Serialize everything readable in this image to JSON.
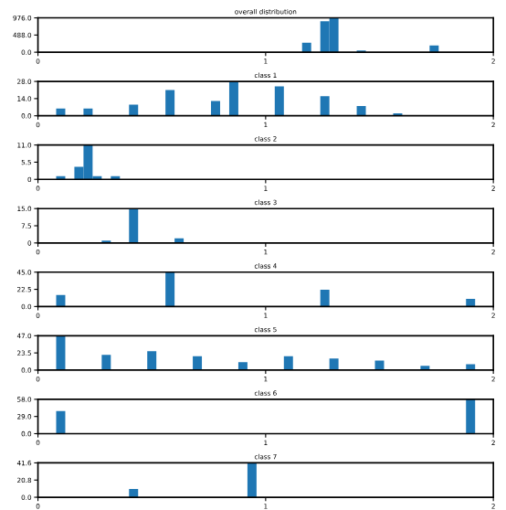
{
  "chart_data": [
    {
      "type": "histogram",
      "title": "overall distribution",
      "color": "#1f77b4",
      "xlim": [
        0,
        2
      ],
      "xticks": [
        0,
        1,
        2
      ],
      "ylim": [
        0,
        976.0
      ],
      "yticks": [
        {
          "value": 0,
          "label": "0.0"
        },
        {
          "value": 488,
          "label": "488.0"
        },
        {
          "value": 976,
          "label": "976.0"
        }
      ],
      "bins": [
        0,
        0.04,
        0.08,
        0.12,
        0.16,
        0.2,
        0.24,
        0.28,
        0.32,
        0.36,
        0.4,
        0.44,
        0.48,
        0.52,
        0.56,
        0.6,
        0.64,
        0.68,
        0.72,
        0.76,
        0.8,
        0.84,
        0.88,
        0.92,
        0.96,
        1.0,
        1.04,
        1.08,
        1.12,
        1.16,
        1.2,
        1.24,
        1.28,
        1.32,
        1.36,
        1.4,
        1.44,
        1.48,
        1.52,
        1.56,
        1.6,
        1.64,
        1.68,
        1.72,
        1.76,
        1.8,
        1.84,
        1.88,
        1.92,
        1.96,
        2.0
      ],
      "values": [
        0,
        0,
        0,
        0,
        0,
        0,
        0,
        0,
        0,
        0,
        0,
        0,
        0,
        0,
        0,
        0,
        0,
        0,
        0,
        0,
        0,
        0,
        0,
        0,
        0,
        0,
        0,
        0,
        0,
        270,
        0,
        880,
        970,
        0,
        0,
        50,
        0,
        0,
        0,
        0,
        0,
        0,
        0,
        190,
        0,
        0,
        0,
        0,
        0,
        0
      ]
    },
    {
      "type": "histogram",
      "title": "class 1",
      "color": "#1f77b4",
      "xlim": [
        0,
        2
      ],
      "xticks": [
        0,
        1,
        2
      ],
      "ylim": [
        0,
        28.0
      ],
      "yticks": [
        {
          "value": 0,
          "label": "0.0"
        },
        {
          "value": 14,
          "label": "14.0"
        },
        {
          "value": 28,
          "label": "28.0"
        }
      ],
      "bins": [
        0,
        0.04,
        0.08,
        0.12,
        0.16,
        0.2,
        0.24,
        0.28,
        0.32,
        0.36,
        0.4,
        0.44,
        0.48,
        0.52,
        0.56,
        0.6,
        0.64,
        0.68,
        0.72,
        0.76,
        0.8,
        0.84,
        0.88,
        0.92,
        0.96,
        1.0,
        1.04,
        1.08,
        1.12,
        1.16,
        1.2,
        1.24,
        1.28,
        1.32,
        1.36,
        1.4,
        1.44,
        1.48,
        1.52,
        1.56,
        1.6,
        1.64,
        1.68,
        1.72,
        1.76,
        1.8,
        1.84,
        1.88,
        1.92,
        1.96,
        2.0
      ],
      "values": [
        0,
        0,
        6,
        0,
        0,
        6,
        0,
        0,
        0,
        0,
        9,
        0,
        0,
        0,
        21,
        0,
        0,
        0,
        0,
        12,
        0,
        28,
        0,
        0,
        0,
        0,
        24,
        0,
        0,
        0,
        0,
        16,
        0,
        0,
        0,
        8,
        0,
        0,
        0,
        2,
        0,
        0,
        0,
        0,
        0,
        0,
        0,
        0,
        0,
        0
      ]
    },
    {
      "type": "histogram",
      "title": "class 2",
      "color": "#1f77b4",
      "xlim": [
        0,
        2
      ],
      "xticks": [
        0,
        1,
        2
      ],
      "ylim": [
        0,
        11.0
      ],
      "yticks": [
        0,
        5.5,
        {
          "value": 11,
          "label": "11.0"
        }
      ],
      "bins": [
        0,
        0.04,
        0.08,
        0.12,
        0.16,
        0.2,
        0.24,
        0.28,
        0.32,
        0.36,
        0.4,
        0.44,
        0.48,
        0.52,
        0.56,
        0.6,
        0.64,
        0.68,
        0.72,
        0.76,
        0.8,
        0.84,
        0.88,
        0.92,
        0.96,
        1.0,
        1.04,
        1.08,
        1.12,
        1.16,
        1.2,
        1.24,
        1.28,
        1.32,
        1.36,
        1.4,
        1.44,
        1.48,
        1.52,
        1.56,
        1.6,
        1.64,
        1.68,
        1.72,
        1.76,
        1.8,
        1.84,
        1.88,
        1.92,
        1.96,
        2.0
      ],
      "values": [
        0,
        0,
        1,
        0,
        4,
        11,
        1,
        0,
        1,
        0,
        0,
        0,
        0,
        0,
        0,
        0,
        0,
        0,
        0,
        0,
        0,
        0,
        0,
        0,
        0,
        0,
        0,
        0,
        0,
        0,
        0,
        0,
        0,
        0,
        0,
        0,
        0,
        0,
        0,
        0,
        0,
        0,
        0,
        0,
        0,
        0,
        0,
        0,
        0,
        0
      ]
    },
    {
      "type": "histogram",
      "title": "class 3",
      "color": "#1f77b4",
      "xlim": [
        0,
        2
      ],
      "xticks": [
        0,
        1,
        2
      ],
      "ylim": [
        0,
        15.0
      ],
      "yticks": [
        0,
        7.5,
        {
          "value": 15,
          "label": "15.0"
        }
      ],
      "bins": [
        0,
        0.04,
        0.08,
        0.12,
        0.16,
        0.2,
        0.24,
        0.28,
        0.32,
        0.36,
        0.4,
        0.44,
        0.48,
        0.52,
        0.56,
        0.6,
        0.64,
        0.68,
        0.72,
        0.76,
        0.8,
        0.84,
        0.88,
        0.92,
        0.96,
        1.0,
        1.04,
        1.08,
        1.12,
        1.16,
        1.2,
        1.24,
        1.28,
        1.32,
        1.36,
        1.4,
        1.44,
        1.48,
        1.52,
        1.56,
        1.6,
        1.64,
        1.68,
        1.72,
        1.76,
        1.8,
        1.84,
        1.88,
        1.92,
        1.96,
        2.0
      ],
      "values": [
        0,
        0,
        0,
        0,
        0,
        0,
        0,
        1,
        0,
        0,
        15,
        0,
        0,
        0,
        0,
        2,
        0,
        0,
        0,
        0,
        0,
        0,
        0,
        0,
        0,
        0,
        0,
        0,
        0,
        0,
        0,
        0,
        0,
        0,
        0,
        0,
        0,
        0,
        0,
        0,
        0,
        0,
        0,
        0,
        0,
        0,
        0,
        0,
        0,
        0
      ]
    },
    {
      "type": "histogram",
      "title": "class 4",
      "color": "#1f77b4",
      "xlim": [
        0,
        2
      ],
      "xticks": [
        0,
        1,
        2
      ],
      "ylim": [
        0,
        45.0
      ],
      "yticks": [
        {
          "value": 0,
          "label": "0.0"
        },
        22.5,
        {
          "value": 45,
          "label": "45.0"
        }
      ],
      "bins": [
        0,
        0.04,
        0.08,
        0.12,
        0.16,
        0.2,
        0.24,
        0.28,
        0.32,
        0.36,
        0.4,
        0.44,
        0.48,
        0.52,
        0.56,
        0.6,
        0.64,
        0.68,
        0.72,
        0.76,
        0.8,
        0.84,
        0.88,
        0.92,
        0.96,
        1.0,
        1.04,
        1.08,
        1.12,
        1.16,
        1.2,
        1.24,
        1.28,
        1.32,
        1.36,
        1.4,
        1.44,
        1.48,
        1.52,
        1.56,
        1.6,
        1.64,
        1.68,
        1.72,
        1.76,
        1.8,
        1.84,
        1.88,
        1.92,
        1.96,
        2.0
      ],
      "values": [
        0,
        0,
        15,
        0,
        0,
        0,
        0,
        0,
        0,
        0,
        0,
        0,
        0,
        0,
        45,
        0,
        0,
        0,
        0,
        0,
        0,
        0,
        0,
        0,
        0,
        0,
        0,
        0,
        0,
        0,
        0,
        22,
        0,
        0,
        0,
        0,
        0,
        0,
        0,
        0,
        0,
        0,
        0,
        0,
        0,
        0,
        0,
        10,
        0,
        0
      ]
    },
    {
      "type": "histogram",
      "title": "class 5",
      "color": "#1f77b4",
      "xlim": [
        0,
        2
      ],
      "xticks": [
        0,
        1,
        2
      ],
      "ylim": [
        0,
        47.0
      ],
      "yticks": [
        {
          "value": 0,
          "label": "0.0"
        },
        23.5,
        {
          "value": 47,
          "label": "47.0"
        }
      ],
      "bins": [
        0,
        0.04,
        0.08,
        0.12,
        0.16,
        0.2,
        0.24,
        0.28,
        0.32,
        0.36,
        0.4,
        0.44,
        0.48,
        0.52,
        0.56,
        0.6,
        0.64,
        0.68,
        0.72,
        0.76,
        0.8,
        0.84,
        0.88,
        0.92,
        0.96,
        1.0,
        1.04,
        1.08,
        1.12,
        1.16,
        1.2,
        1.24,
        1.28,
        1.32,
        1.36,
        1.4,
        1.44,
        1.48,
        1.52,
        1.56,
        1.6,
        1.64,
        1.68,
        1.72,
        1.76,
        1.8,
        1.84,
        1.88,
        1.92,
        1.96,
        2.0
      ],
      "values": [
        0,
        0,
        47,
        0,
        0,
        0,
        0,
        21,
        0,
        0,
        0,
        0,
        26,
        0,
        0,
        0,
        0,
        19,
        0,
        0,
        0,
        0,
        11,
        0,
        0,
        0,
        0,
        19,
        0,
        0,
        0,
        0,
        16,
        0,
        0,
        0,
        0,
        13,
        0,
        0,
        0,
        0,
        6,
        0,
        0,
        0,
        0,
        8,
        0,
        0
      ]
    },
    {
      "type": "histogram",
      "title": "class 6",
      "color": "#1f77b4",
      "xlim": [
        0,
        2
      ],
      "xticks": [
        0,
        1,
        2
      ],
      "ylim": [
        0,
        58.0
      ],
      "yticks": [
        {
          "value": 0,
          "label": "0.0"
        },
        {
          "value": 29,
          "label": "29.0"
        },
        {
          "value": 58,
          "label": "58.0"
        }
      ],
      "bins": [
        0,
        0.04,
        0.08,
        0.12,
        0.16,
        0.2,
        0.24,
        0.28,
        0.32,
        0.36,
        0.4,
        0.44,
        0.48,
        0.52,
        0.56,
        0.6,
        0.64,
        0.68,
        0.72,
        0.76,
        0.8,
        0.84,
        0.88,
        0.92,
        0.96,
        1.0,
        1.04,
        1.08,
        1.12,
        1.16,
        1.2,
        1.24,
        1.28,
        1.32,
        1.36,
        1.4,
        1.44,
        1.48,
        1.52,
        1.56,
        1.6,
        1.64,
        1.68,
        1.72,
        1.76,
        1.8,
        1.84,
        1.88,
        1.92,
        1.96,
        2.0
      ],
      "values": [
        0,
        0,
        38,
        0,
        0,
        0,
        0,
        0,
        0,
        0,
        0,
        0,
        0,
        0,
        0,
        0,
        0,
        0,
        0,
        0,
        0,
        0,
        0,
        0,
        0,
        0,
        0,
        0,
        0,
        0,
        0,
        0,
        0,
        0,
        0,
        0,
        0,
        0,
        0,
        0,
        0,
        0,
        0,
        0,
        0,
        0,
        0,
        58,
        0,
        0
      ]
    },
    {
      "type": "histogram",
      "title": "class 7",
      "color": "#1f77b4",
      "xlim": [
        0,
        2
      ],
      "xticks": [
        0,
        1,
        2
      ],
      "ylim": [
        0,
        41.6
      ],
      "yticks": [
        {
          "value": 0,
          "label": "0.0"
        },
        20.8,
        41.6
      ],
      "bins": [
        0,
        0.04,
        0.08,
        0.12,
        0.16,
        0.2,
        0.24,
        0.28,
        0.32,
        0.36,
        0.4,
        0.44,
        0.48,
        0.52,
        0.56,
        0.6,
        0.64,
        0.68,
        0.72,
        0.76,
        0.8,
        0.84,
        0.88,
        0.92,
        0.96,
        1.0,
        1.04,
        1.08,
        1.12,
        1.16,
        1.2,
        1.24,
        1.28,
        1.32,
        1.36,
        1.4,
        1.44,
        1.48,
        1.52,
        1.56,
        1.6,
        1.64,
        1.68,
        1.72,
        1.76,
        1.8,
        1.84,
        1.88,
        1.92,
        1.96,
        2.0
      ],
      "values": [
        0,
        0,
        0,
        0,
        0,
        0,
        0,
        0,
        0,
        0,
        10,
        0,
        0,
        0,
        0,
        0,
        0,
        0,
        0,
        0,
        0,
        0,
        0,
        41,
        0,
        0,
        0,
        0,
        0,
        0,
        0,
        0,
        0,
        0,
        0,
        0,
        0,
        0,
        0,
        0,
        0,
        0,
        0,
        0,
        0,
        0,
        0,
        0,
        0,
        0
      ]
    }
  ]
}
